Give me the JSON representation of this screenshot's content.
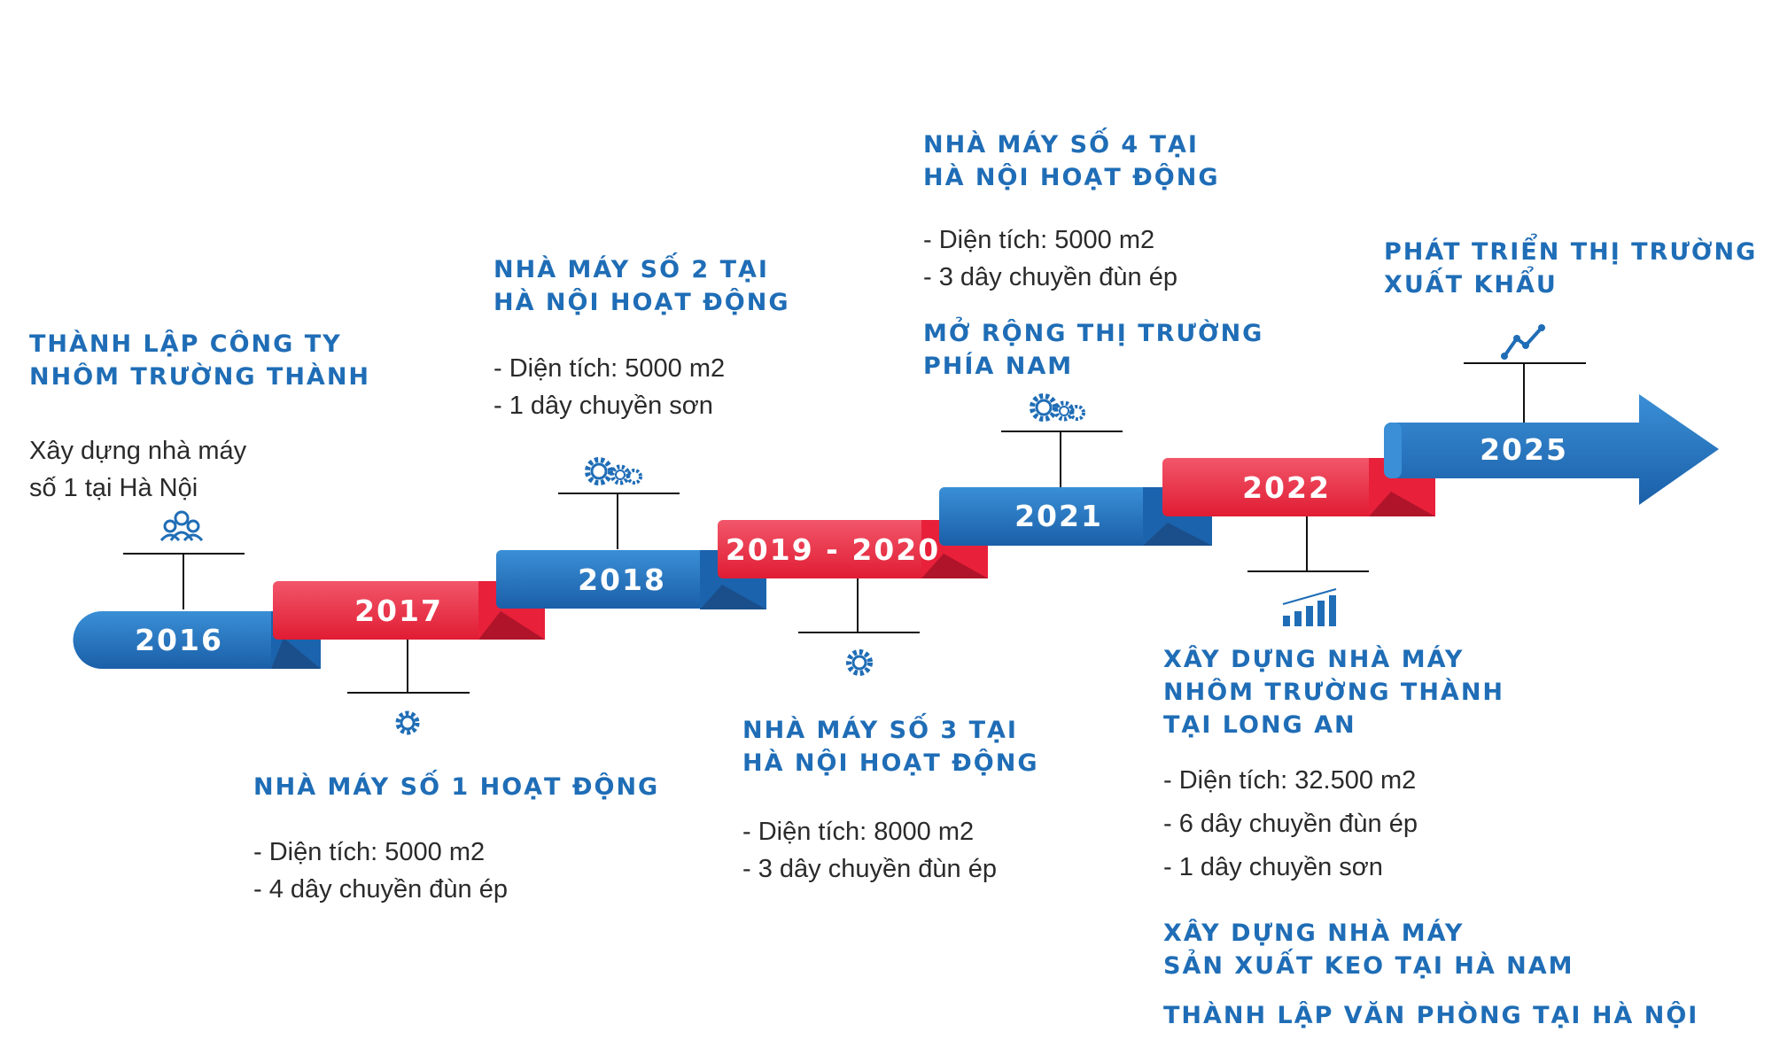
{
  "colors": {
    "blue": "#1f6db6",
    "red": "#e8203a",
    "text": "#2a2a2a"
  },
  "years": {
    "y2016": "2016",
    "y2017": "2017",
    "y2018": "2018",
    "y2019": "2019 - 2020",
    "y2021": "2021",
    "y2022": "2022",
    "y2025": "2025"
  },
  "events": {
    "e2016": {
      "icon": "people-icon",
      "title": [
        "THÀNH LẬP CÔNG TY",
        "NHÔM TRƯỜNG THÀNH"
      ],
      "body": [
        "Xây dựng nhà máy",
        "số 1 tại Hà Nội"
      ]
    },
    "e2017": {
      "icon": "gear-icon",
      "title": [
        "NHÀ MÁY SỐ 1 HOẠT ĐỘNG"
      ],
      "details": [
        "- Diện tích: 5000 m2",
        "- 4 dây chuyền đùn ép"
      ]
    },
    "e2018": {
      "icon": "gears-icon",
      "title": [
        "NHÀ MÁY SỐ 2 TẠI",
        "HÀ NỘI HOẠT ĐỘNG"
      ],
      "details": [
        "- Diện tích: 5000 m2",
        "- 1 dây chuyền sơn"
      ]
    },
    "e2019": {
      "icon": "gear-icon",
      "title": [
        "NHÀ MÁY SỐ 3 TẠI",
        "HÀ NỘI HOẠT ĐỘNG"
      ],
      "details": [
        "- Diện tích: 8000 m2",
        "- 3 dây chuyền đùn ép"
      ]
    },
    "e2021": {
      "icon": "gears-icon",
      "title": [
        "NHÀ MÁY SỐ 4 TẠI",
        "HÀ NỘI HOẠT ĐỘNG"
      ],
      "details": [
        "- Diện tích: 5000 m2",
        "- 3 dây chuyền đùn ép"
      ],
      "title2": [
        "MỞ RỘNG THỊ TRƯỜNG",
        "PHÍA NAM"
      ]
    },
    "e2022": {
      "icon": "bar-chart-icon",
      "title": [
        "XÂY DỰNG NHÀ MÁY",
        "NHÔM TRƯỜNG THÀNH",
        "TẠI LONG AN"
      ],
      "details": [
        "- Diện tích: 32.500 m2",
        "- 6 dây chuyền đùn ép",
        "- 1 dây chuyền sơn"
      ],
      "title2": [
        "XÂY DỰNG NHÀ MÁY",
        "SẢN XUẤT KEO TẠI HÀ NAM"
      ],
      "title3": [
        "THÀNH LẬP VĂN PHÒNG TẠI HÀ NỘI"
      ]
    },
    "e2025": {
      "icon": "trend-line-icon",
      "title": [
        "PHÁT TRIỂN THỊ TRƯỜNG",
        "XUẤT KHẨU"
      ]
    }
  }
}
